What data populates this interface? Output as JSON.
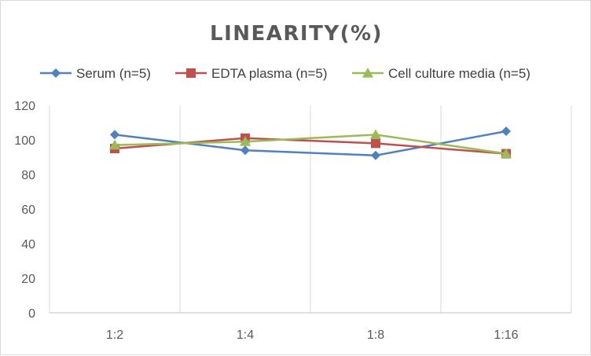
{
  "chart_data": {
    "type": "line",
    "title": "LINEARITY(%)",
    "categories": [
      "1:2",
      "1:4",
      "1:8",
      "1:16"
    ],
    "ylim": [
      0,
      120
    ],
    "yticks": [
      0,
      20,
      40,
      60,
      80,
      100,
      120
    ],
    "grid": "vertical",
    "legend_position": "top",
    "series": [
      {
        "name": "Serum (n=5)",
        "values": [
          103,
          94,
          91,
          105
        ],
        "color": "#4f81bd",
        "marker": "diamond"
      },
      {
        "name": "EDTA plasma (n=5)",
        "values": [
          95,
          101,
          98,
          92
        ],
        "color": "#c0504d",
        "marker": "square"
      },
      {
        "name": "Cell culture media (n=5)",
        "values": [
          97,
          99,
          103,
          92
        ],
        "color": "#9bbb59",
        "marker": "triangle"
      }
    ]
  }
}
